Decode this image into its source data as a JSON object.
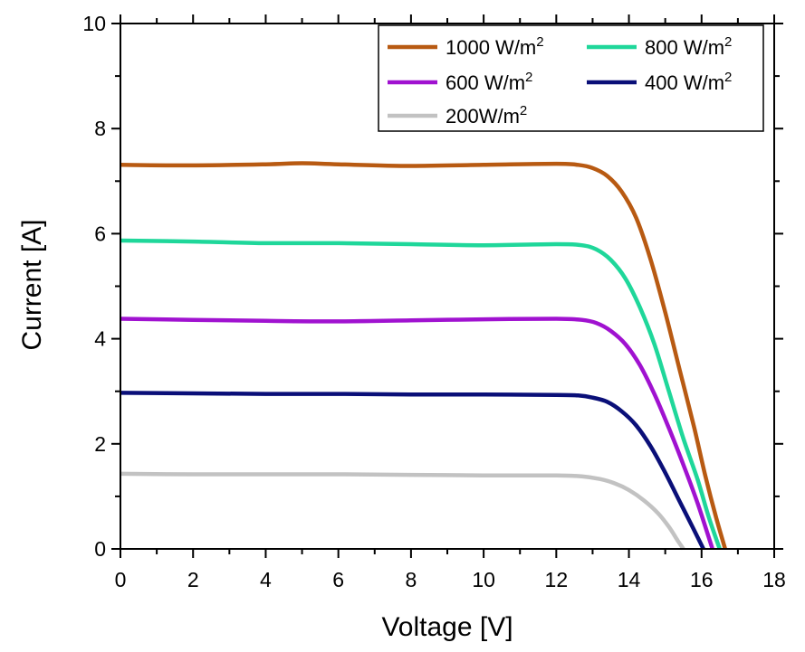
{
  "chart_data": {
    "type": "line",
    "title": "",
    "xlabel": "Voltage [V]",
    "ylabel": "Current [A]",
    "xlim": [
      0,
      18
    ],
    "ylim": [
      0,
      10
    ],
    "x_ticks": [
      0,
      2,
      4,
      6,
      8,
      10,
      12,
      14,
      16,
      18
    ],
    "y_ticks": [
      0,
      2,
      4,
      6,
      8,
      10
    ],
    "grid": false,
    "legend_position": "top-right",
    "series": [
      {
        "name": "1000 W/m",
        "sup": "2",
        "color": "#b85a12",
        "points": [
          [
            0,
            7.31
          ],
          [
            2,
            7.3
          ],
          [
            4,
            7.32
          ],
          [
            5,
            7.34
          ],
          [
            6,
            7.32
          ],
          [
            8,
            7.29
          ],
          [
            10,
            7.31
          ],
          [
            12,
            7.33
          ],
          [
            12.6,
            7.31
          ],
          [
            13,
            7.25
          ],
          [
            13.4,
            7.1
          ],
          [
            13.8,
            6.8
          ],
          [
            14.2,
            6.3
          ],
          [
            14.6,
            5.5
          ],
          [
            15,
            4.5
          ],
          [
            15.4,
            3.4
          ],
          [
            15.8,
            2.3
          ],
          [
            16.1,
            1.4
          ],
          [
            16.4,
            0.6
          ],
          [
            16.65,
            0
          ]
        ]
      },
      {
        "name": "800 W/m",
        "sup": "2",
        "color": "#1fd79a",
        "points": [
          [
            0,
            5.87
          ],
          [
            2,
            5.85
          ],
          [
            4,
            5.82
          ],
          [
            6,
            5.82
          ],
          [
            8,
            5.8
          ],
          [
            10,
            5.78
          ],
          [
            12,
            5.8
          ],
          [
            12.7,
            5.78
          ],
          [
            13.1,
            5.7
          ],
          [
            13.5,
            5.5
          ],
          [
            13.9,
            5.15
          ],
          [
            14.3,
            4.6
          ],
          [
            14.7,
            3.9
          ],
          [
            15.1,
            3.0
          ],
          [
            15.5,
            2.1
          ],
          [
            15.9,
            1.3
          ],
          [
            16.2,
            0.6
          ],
          [
            16.5,
            0
          ]
        ]
      },
      {
        "name": "600 W/m",
        "sup": "2",
        "color": "#a012d0",
        "points": [
          [
            0,
            4.38
          ],
          [
            2,
            4.36
          ],
          [
            4,
            4.34
          ],
          [
            6,
            4.33
          ],
          [
            8,
            4.35
          ],
          [
            10,
            4.37
          ],
          [
            12,
            4.38
          ],
          [
            12.7,
            4.36
          ],
          [
            13.1,
            4.3
          ],
          [
            13.5,
            4.15
          ],
          [
            13.9,
            3.9
          ],
          [
            14.3,
            3.5
          ],
          [
            14.7,
            2.95
          ],
          [
            15.1,
            2.3
          ],
          [
            15.5,
            1.6
          ],
          [
            15.9,
            0.85
          ],
          [
            16.3,
            0
          ]
        ]
      },
      {
        "name": "400 W/m",
        "sup": "2",
        "color": "#0a0f78",
        "points": [
          [
            0,
            2.97
          ],
          [
            2,
            2.96
          ],
          [
            4,
            2.95
          ],
          [
            6,
            2.95
          ],
          [
            8,
            2.94
          ],
          [
            10,
            2.94
          ],
          [
            12,
            2.93
          ],
          [
            12.6,
            2.92
          ],
          [
            13,
            2.88
          ],
          [
            13.4,
            2.8
          ],
          [
            13.8,
            2.62
          ],
          [
            14.2,
            2.35
          ],
          [
            14.6,
            1.95
          ],
          [
            15,
            1.45
          ],
          [
            15.4,
            0.9
          ],
          [
            15.8,
            0.35
          ],
          [
            16.05,
            0
          ]
        ]
      },
      {
        "name": "200W/m",
        "sup": "2",
        "color": "#c2c2c2",
        "points": [
          [
            0,
            1.43
          ],
          [
            2,
            1.42
          ],
          [
            4,
            1.42
          ],
          [
            6,
            1.42
          ],
          [
            8,
            1.41
          ],
          [
            10,
            1.4
          ],
          [
            12,
            1.4
          ],
          [
            12.7,
            1.38
          ],
          [
            13.2,
            1.33
          ],
          [
            13.6,
            1.25
          ],
          [
            14,
            1.12
          ],
          [
            14.4,
            0.93
          ],
          [
            14.8,
            0.68
          ],
          [
            15.1,
            0.42
          ],
          [
            15.35,
            0.15
          ],
          [
            15.5,
            0
          ]
        ]
      }
    ]
  }
}
